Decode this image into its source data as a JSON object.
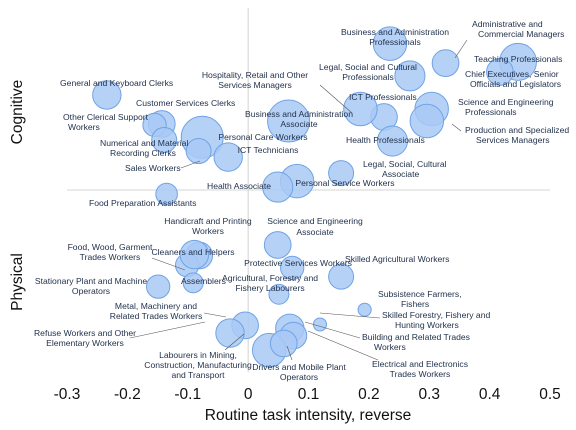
{
  "chart_data": {
    "type": "scatter",
    "title": "",
    "xlabel": "Routine task intensity, reverse",
    "ylabel": "",
    "xlim": [
      -0.3,
      0.5
    ],
    "ylim": [
      -1.0,
      1.0
    ],
    "x_ticks": [
      "-0.3",
      "-0.2",
      "-0.1",
      "0",
      "0.1",
      "0.2",
      "0.3",
      "0.4",
      "0.5"
    ],
    "x_tick_values": [
      -0.3,
      -0.2,
      -0.1,
      0,
      0.1,
      0.2,
      0.3,
      0.4,
      0.5
    ],
    "quadrant_labels": {
      "top": "Cognitive",
      "bottom": "Physical"
    },
    "divider_y": 0.0,
    "divider_x": 0.0,
    "bubble_color": "#a9c9f4",
    "bubble_edge_color": "#6fa3e6",
    "points": [
      {
        "label": "Administrative and Commercial Managers",
        "x": 0.327,
        "y": 0.697,
        "r": 0.55
      },
      {
        "label": "Business and Administration Professionals",
        "x": 0.235,
        "y": 0.804,
        "r": 0.75
      },
      {
        "label": "Teaching Professionals",
        "x": 0.447,
        "y": 0.704,
        "r": 0.85
      },
      {
        "label": "Legal, Social and Cultural Professionals",
        "x": 0.268,
        "y": 0.627,
        "r": 0.65
      },
      {
        "label": "Chief Executives, Senior Officials and Legislators",
        "x": 0.417,
        "y": 0.649,
        "r": 0.55
      },
      {
        "label": "Science and Engineering Professionals",
        "x": 0.304,
        "y": 0.445,
        "r": 0.75
      },
      {
        "label": "Production and Specialized Services Managers",
        "x": 0.296,
        "y": 0.379,
        "r": 0.75
      },
      {
        "label": "ICT Professionals",
        "x": 0.225,
        "y": 0.401,
        "r": 0.55
      },
      {
        "label": "Health Professionals",
        "x": 0.239,
        "y": 0.269,
        "r": 0.65
      },
      {
        "label": "Business and Administration Associate",
        "x": 0.067,
        "y": 0.379,
        "r": 1.0
      },
      {
        "label": "Hospitality, Retail and Other Services Managers",
        "x": 0.186,
        "y": 0.445,
        "r": 0.75
      },
      {
        "label": "Legal, Social, Cultural Associate",
        "x": 0.154,
        "y": 0.093,
        "r": 0.5
      },
      {
        "label": "Personal Service Workers",
        "x": 0.081,
        "y": 0.049,
        "r": 0.75
      },
      {
        "label": "Health Associate",
        "x": 0.049,
        "y": 0.016,
        "r": 0.65
      },
      {
        "label": "Personal Care Workers",
        "x": -0.076,
        "y": 0.29,
        "r": 1.0
      },
      {
        "label": "ICT Technicians",
        "x": -0.033,
        "y": 0.181,
        "r": 0.6
      },
      {
        "label": "Customer Services Clerks",
        "x": -0.143,
        "y": 0.363,
        "r": 0.55
      },
      {
        "label": "General and Keyboard Clerks",
        "x": -0.234,
        "y": 0.522,
        "r": 0.6
      },
      {
        "label": "Other Clerical Support Workers",
        "x": -0.155,
        "y": 0.358,
        "r": 0.45
      },
      {
        "label": "Numerical and Material Recording Clerks",
        "x": -0.139,
        "y": 0.275,
        "r": 0.5
      },
      {
        "label": "Sales Workers",
        "x": -0.082,
        "y": 0.214,
        "r": 0.5
      },
      {
        "label": "Food Preparation Assistants",
        "x": -0.135,
        "y": -0.022,
        "r": 0.4
      },
      {
        "label": "Science and Engineering Associate",
        "x": 0.049,
        "y": -0.302,
        "r": 0.55
      },
      {
        "label": "Handicraft and Printing Workers",
        "x": -0.081,
        "y": -0.36,
        "r": 0.55
      },
      {
        "label": "Food, Wood, Garment Trades Workers",
        "x": -0.101,
        "y": -0.413,
        "r": 0.45
      },
      {
        "label": "Cleaners and Helpers",
        "x": -0.089,
        "y": -0.355,
        "r": 0.6
      },
      {
        "label": "Protective Services Workers",
        "x": 0.073,
        "y": -0.428,
        "r": 0.45
      },
      {
        "label": "Skilled Agricultural Workers",
        "x": 0.154,
        "y": -0.476,
        "r": 0.5
      },
      {
        "label": "Assemblers",
        "x": -0.091,
        "y": -0.51,
        "r": 0.35
      },
      {
        "label": "Stationary Plant and Machine Operators",
        "x": -0.149,
        "y": -0.531,
        "r": 0.45
      },
      {
        "label": "Agricultural, Forestry and Fishery Labourers",
        "x": 0.051,
        "y": -0.573,
        "r": 0.35
      },
      {
        "label": "Subsistence Farmers, Fishers",
        "x": 0.193,
        "y": -0.658,
        "r": 0.15
      },
      {
        "label": "Skilled Forestry, Fishery and Hunting Workers",
        "x": 0.119,
        "y": -0.739,
        "r": 0.15
      },
      {
        "label": "Metal, Machinery and Related Trades Workers",
        "x": -0.005,
        "y": -0.744,
        "r": 0.55
      },
      {
        "label": "Refuse Workers and Other Elementary Workers",
        "x": -0.03,
        "y": -0.786,
        "r": 0.6
      },
      {
        "label": "Building and Related Trades Workers",
        "x": 0.069,
        "y": -0.76,
        "r": 0.6
      },
      {
        "label": "Electrical and Electronics Trades Workers",
        "x": 0.075,
        "y": -0.8,
        "r": 0.55
      },
      {
        "label": "Labourers in Mining, Construction, Manufacturing and Transport",
        "x": 0.035,
        "y": -0.88,
        "r": 0.75
      },
      {
        "label": "Drivers and Mobile Plant Operators",
        "x": 0.059,
        "y": -0.843,
        "r": 0.55
      }
    ]
  }
}
